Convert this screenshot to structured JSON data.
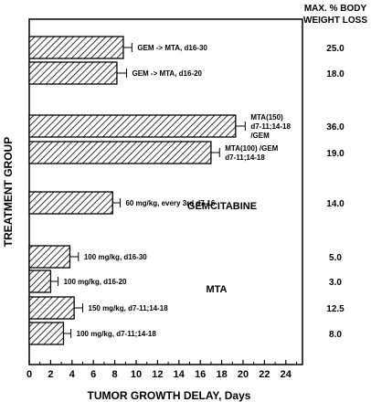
{
  "chart_data": {
    "type": "bar",
    "orientation": "horizontal",
    "xlabel": "TUMOR GROWTH DELAY, Days",
    "ylabel": "TREATMENT GROUP",
    "xlim": [
      0,
      25
    ],
    "xticks": [
      0,
      2,
      4,
      6,
      8,
      10,
      12,
      14,
      16,
      18,
      20,
      22,
      24
    ],
    "right_column_header": [
      "MAX. % BODY",
      "WEIGHT LOSS"
    ],
    "group_labels": [
      "GEMCITABINE",
      "MTA"
    ],
    "bars": [
      {
        "label": [
          "GEM -> MTA, d16-30"
        ],
        "value": 8.8,
        "error": 0.8,
        "weight_loss": "25.0"
      },
      {
        "label": [
          "GEM -> MTA, d16-20"
        ],
        "value": 8.2,
        "error": 0.9,
        "weight_loss": "18.0"
      },
      {
        "label": [
          "MTA(150)",
          "d7-11;14-18",
          "/GEM"
        ],
        "value": 19.3,
        "error": 0.9,
        "weight_loss": "36.0"
      },
      {
        "label": [
          "MTA(100) /GEM",
          "d7-11;14-18"
        ],
        "value": 17.0,
        "error": 0.8,
        "weight_loss": "19.0"
      },
      {
        "label": [
          "60 mg/kg, every 3rd d7-16"
        ],
        "value": 7.8,
        "error": 0.7,
        "weight_loss": "14.0"
      },
      {
        "label": [
          "100 mg/kg, d16-30"
        ],
        "value": 3.8,
        "error": 0.8,
        "weight_loss": "5.0"
      },
      {
        "label": [
          "100 mg/kg, d16-20"
        ],
        "value": 2.0,
        "error": 0.7,
        "weight_loss": "3.0"
      },
      {
        "label": [
          "150 mg/kg, d7-11;14-18"
        ],
        "value": 4.2,
        "error": 0.8,
        "weight_loss": "12.5"
      },
      {
        "label": [
          "100 mg/kg, d7-11;14-18"
        ],
        "value": 3.2,
        "error": 0.7,
        "weight_loss": "8.0"
      }
    ],
    "grid": false,
    "bar_pattern": "diagonal-hatch"
  }
}
